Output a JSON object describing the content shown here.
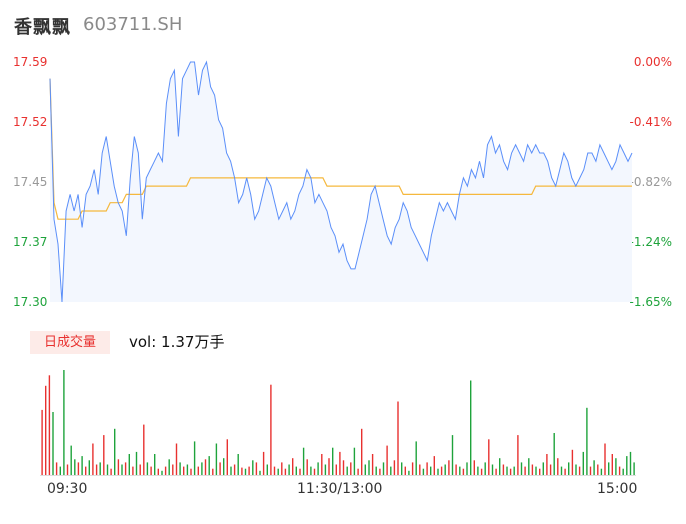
{
  "header": {
    "name": "香飘飘",
    "code": "603711.SH"
  },
  "colors": {
    "price_line": "#5b8ff9",
    "avg_line": "#f5b83d",
    "up": "#e8312f",
    "down": "#1ea33b",
    "flat": "#999999",
    "area_fill": "#f3f7fe"
  },
  "volume_panel": {
    "badge": "日成交量",
    "readout": "vol: 1.37万手"
  },
  "chart_data": {
    "type": "line",
    "prev_close": 17.59,
    "y_left_ticks": [
      "17.59",
      "17.52",
      "17.45",
      "17.37",
      "17.30"
    ],
    "y_right_ticks": [
      "0.00%",
      "-0.41%",
      "-0.82%",
      "-1.24%",
      "-1.65%"
    ],
    "ylim": [
      17.3,
      17.59
    ],
    "x_labels": [
      "09:30",
      "11:30/13:00",
      "15:00"
    ],
    "series": [
      {
        "name": "",
        "role": "price",
        "values": [
          17.57,
          17.4,
          17.37,
          17.3,
          17.41,
          17.43,
          17.41,
          17.43,
          17.39,
          17.43,
          17.44,
          17.46,
          17.43,
          17.48,
          17.5,
          17.47,
          17.44,
          17.42,
          17.41,
          17.38,
          17.45,
          17.5,
          17.48,
          17.4,
          17.45,
          17.46,
          17.47,
          17.48,
          17.47,
          17.54,
          17.57,
          17.58,
          17.5,
          17.57,
          17.58,
          17.59,
          17.59,
          17.55,
          17.58,
          17.59,
          17.56,
          17.55,
          17.52,
          17.51,
          17.48,
          17.47,
          17.45,
          17.42,
          17.43,
          17.45,
          17.43,
          17.4,
          17.41,
          17.43,
          17.45,
          17.44,
          17.42,
          17.4,
          17.41,
          17.42,
          17.4,
          17.41,
          17.43,
          17.44,
          17.46,
          17.45,
          17.42,
          17.43,
          17.42,
          17.41,
          17.39,
          17.38,
          17.36,
          17.37,
          17.35,
          17.34,
          17.34,
          17.36,
          17.38,
          17.4,
          17.43,
          17.44,
          17.42,
          17.4,
          17.38,
          17.37,
          17.39,
          17.4,
          17.42,
          17.41,
          17.39,
          17.38,
          17.37,
          17.36,
          17.35,
          17.38,
          17.4,
          17.42,
          17.41,
          17.42,
          17.41,
          17.4,
          17.43,
          17.45,
          17.44,
          17.46,
          17.45,
          17.47,
          17.45,
          17.49,
          17.5,
          17.48,
          17.49,
          17.47,
          17.46,
          17.48,
          17.49,
          17.48,
          17.47,
          17.49,
          17.48,
          17.49,
          17.48,
          17.48,
          17.47,
          17.45,
          17.44,
          17.46,
          17.48,
          17.47,
          17.45,
          17.44,
          17.45,
          17.46,
          17.48,
          17.48,
          17.47,
          17.49,
          17.48,
          17.47,
          17.46,
          17.47,
          17.49,
          17.48,
          17.47,
          17.48
        ]
      },
      {
        "name": "",
        "role": "average",
        "values": [
          17.57,
          17.42,
          17.4,
          17.4,
          17.4,
          17.4,
          17.4,
          17.4,
          17.41,
          17.41,
          17.41,
          17.41,
          17.41,
          17.41,
          17.41,
          17.42,
          17.42,
          17.42,
          17.42,
          17.43,
          17.43,
          17.43,
          17.43,
          17.43,
          17.44,
          17.44,
          17.44,
          17.44,
          17.44,
          17.44,
          17.44,
          17.44,
          17.44,
          17.44,
          17.44,
          17.45,
          17.45,
          17.45,
          17.45,
          17.45,
          17.45,
          17.45,
          17.45,
          17.45,
          17.45,
          17.45,
          17.45,
          17.45,
          17.45,
          17.45,
          17.45,
          17.45,
          17.45,
          17.45,
          17.45,
          17.45,
          17.45,
          17.45,
          17.45,
          17.45,
          17.45,
          17.45,
          17.45,
          17.45,
          17.45,
          17.45,
          17.45,
          17.45,
          17.45,
          17.44,
          17.44,
          17.44,
          17.44,
          17.44,
          17.44,
          17.44,
          17.44,
          17.44,
          17.44,
          17.44,
          17.44,
          17.44,
          17.44,
          17.44,
          17.44,
          17.44,
          17.44,
          17.44,
          17.43,
          17.43,
          17.43,
          17.43,
          17.43,
          17.43,
          17.43,
          17.43,
          17.43,
          17.43,
          17.43,
          17.43,
          17.43,
          17.43,
          17.43,
          17.43,
          17.43,
          17.43,
          17.43,
          17.43,
          17.43,
          17.43,
          17.43,
          17.43,
          17.43,
          17.43,
          17.43,
          17.43,
          17.43,
          17.43,
          17.43,
          17.43,
          17.43,
          17.44,
          17.44,
          17.44,
          17.44,
          17.44,
          17.44,
          17.44,
          17.44,
          17.44,
          17.44,
          17.44,
          17.44,
          17.44,
          17.44,
          17.44,
          17.44,
          17.44,
          17.44,
          17.44,
          17.44,
          17.44,
          17.44,
          17.44,
          17.44,
          17.44
        ]
      }
    ],
    "volume": {
      "max": 100,
      "values": [
        62,
        85,
        95,
        60,
        12,
        8,
        100,
        10,
        28,
        15,
        12,
        18,
        8,
        14,
        30,
        10,
        12,
        38,
        10,
        6,
        44,
        15,
        10,
        12,
        20,
        8,
        22,
        10,
        48,
        12,
        8,
        20,
        6,
        4,
        8,
        15,
        10,
        30,
        12,
        8,
        10,
        6,
        32,
        8,
        12,
        15,
        18,
        6,
        30,
        12,
        16,
        34,
        8,
        10,
        20,
        7,
        6,
        8,
        14,
        12,
        4,
        22,
        10,
        86,
        8,
        6,
        12,
        6,
        10,
        16,
        8,
        6,
        26,
        15,
        8,
        6,
        12,
        20,
        10,
        16,
        26,
        10,
        22,
        14,
        8,
        12,
        26,
        6,
        44,
        10,
        14,
        20,
        8,
        6,
        12,
        28,
        8,
        14,
        70,
        12,
        8,
        4,
        12,
        32,
        10,
        6,
        12,
        8,
        18,
        6,
        8,
        10,
        14,
        38,
        10,
        8,
        6,
        12,
        90,
        14,
        8,
        6,
        12,
        34,
        10,
        6,
        16,
        10,
        8,
        6,
        8,
        38,
        12,
        8,
        16,
        10,
        8,
        6,
        12,
        20,
        10,
        40,
        16,
        8,
        6,
        12,
        24,
        10,
        8,
        22,
        64,
        8,
        14,
        10,
        6,
        30,
        12,
        20,
        16,
        8,
        6,
        18,
        22,
        12
      ],
      "directions": [
        "u",
        "u",
        "u",
        "d",
        "u",
        "d",
        "d",
        "u",
        "d",
        "d",
        "u",
        "d",
        "u",
        "d",
        "u",
        "u",
        "d",
        "u",
        "d",
        "u",
        "d",
        "u",
        "d",
        "u",
        "d",
        "u",
        "d",
        "u",
        "u",
        "d",
        "u",
        "d",
        "u",
        "d",
        "u",
        "d",
        "u",
        "u",
        "d",
        "u",
        "d",
        "u",
        "d",
        "u",
        "d",
        "u",
        "d",
        "u",
        "d",
        "u",
        "d",
        "u",
        "d",
        "u",
        "d",
        "u",
        "d",
        "u",
        "d",
        "u",
        "d",
        "u",
        "d",
        "u",
        "u",
        "d",
        "u",
        "u",
        "d",
        "u",
        "d",
        "u",
        "d",
        "u",
        "d",
        "u",
        "d",
        "u",
        "d",
        "u",
        "d",
        "u",
        "u",
        "u",
        "d",
        "u",
        "d",
        "u",
        "u",
        "d",
        "d",
        "u",
        "d",
        "u",
        "d",
        "u",
        "d",
        "u",
        "u",
        "d",
        "u",
        "d",
        "u",
        "d",
        "u",
        "d",
        "u",
        "d",
        "u",
        "d",
        "u",
        "d",
        "u",
        "d",
        "u",
        "d",
        "u",
        "d",
        "d",
        "u",
        "d",
        "u",
        "d",
        "u",
        "d",
        "u",
        "d",
        "u",
        "d",
        "u",
        "d",
        "u",
        "d",
        "u",
        "d",
        "u",
        "d",
        "u",
        "d",
        "u",
        "u",
        "d",
        "u",
        "d",
        "u",
        "d",
        "u",
        "d",
        "u",
        "d",
        "d",
        "u",
        "d",
        "u",
        "d",
        "u",
        "d",
        "u",
        "d",
        "u",
        "d",
        "d"
      ]
    }
  }
}
